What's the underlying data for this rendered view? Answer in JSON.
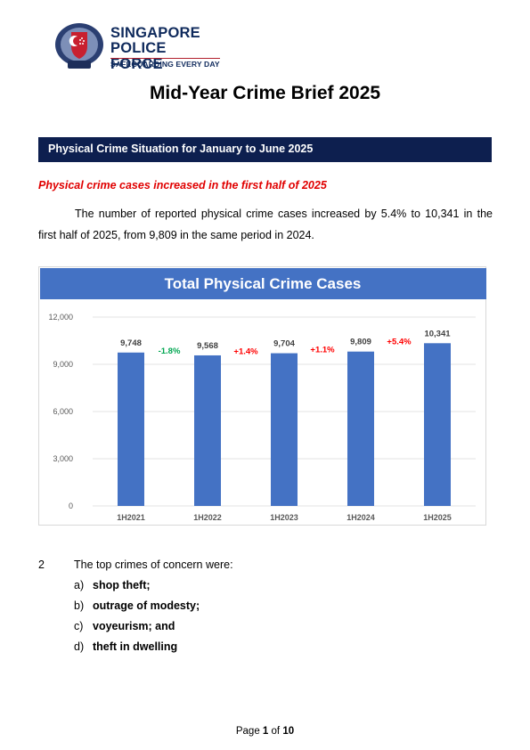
{
  "header": {
    "org_line1": "SINGAPORE",
    "org_line2": "POLICE FORCE",
    "tagline": "SAFEGUARDING EVERY DAY"
  },
  "title": "Mid-Year Crime Brief 2025",
  "section_banner": "Physical Crime Situation for January to June 2025",
  "subheading": "Physical crime cases increased in the first half of 2025",
  "paragraph": "The number of reported physical crime cases increased by 5.4% to 10,341 in the first half of 2025, from 9,809 in the same period in 2024.",
  "chart_data": {
    "type": "bar",
    "title": "Total Physical Crime Cases",
    "categories": [
      "1H2021",
      "1H2022",
      "1H2023",
      "1H2024",
      "1H2025"
    ],
    "values": [
      9748,
      9568,
      9704,
      9809,
      10341
    ],
    "value_labels": [
      "9,748",
      "9,568",
      "9,704",
      "9,809",
      "10,341"
    ],
    "changes": [
      "-1.8%",
      "+1.4%",
      "+1.1%",
      "+5.4%"
    ],
    "change_colors": [
      "#00a651",
      "#ff0000",
      "#ff0000",
      "#ff0000"
    ],
    "yticks": [
      "0",
      "3,000",
      "6,000",
      "9,000",
      "12,000"
    ],
    "ylim": [
      0,
      12000
    ],
    "grid": true,
    "bar_color": "#4472c4",
    "title_bg": "#4472c4"
  },
  "list": {
    "number": "2",
    "intro": "The top crimes of concern were:",
    "items": [
      {
        "letter": "a)",
        "text": "shop theft;"
      },
      {
        "letter": "b)",
        "text": "outrage of modesty;"
      },
      {
        "letter": "c)",
        "text": "voyeurism; and"
      },
      {
        "letter": "d)",
        "text": "theft in dwelling"
      }
    ]
  },
  "footer": {
    "page_word": "Page",
    "current": "1",
    "of_word": "of",
    "total": "10"
  }
}
